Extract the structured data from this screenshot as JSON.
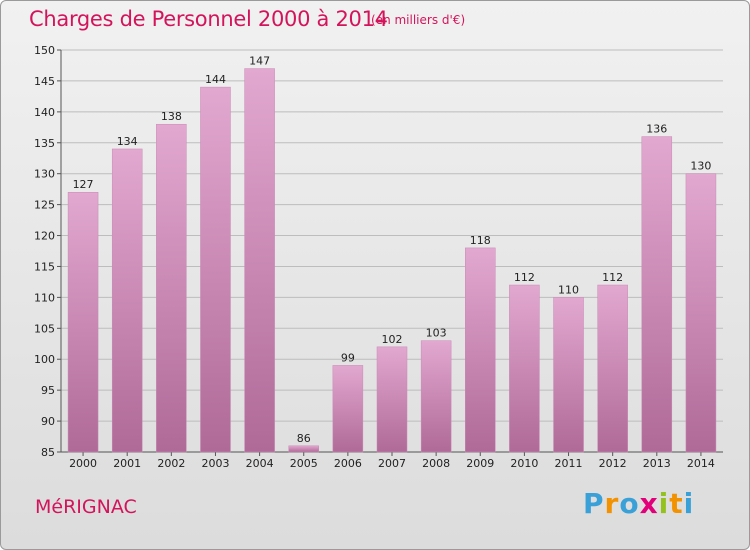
{
  "header": {
    "title": "Charges de Personnel 2000 à 2014",
    "subtitle": "(en milliers d'€)"
  },
  "footer": {
    "commune": "MéRIGNAC",
    "logo": "Proxiti",
    "logo_letters": [
      {
        "ch": "P",
        "color": "#3aa0d8"
      },
      {
        "ch": "r",
        "color": "#f39200"
      },
      {
        "ch": "o",
        "color": "#3aa0d8"
      },
      {
        "ch": "x",
        "color": "#e2007a"
      },
      {
        "ch": "i",
        "color": "#95c11f"
      },
      {
        "ch": "t",
        "color": "#f39200"
      },
      {
        "ch": "i",
        "color": "#3aa0d8"
      }
    ]
  },
  "colors": {
    "bar_top": "#e2a8d0",
    "bar_bottom": "#b06a98",
    "accent": "#d4145a"
  },
  "chart_data": {
    "type": "bar",
    "title": "Charges de Personnel 2000 à 2014",
    "subtitle": "(en milliers d'€)",
    "categories": [
      "2000",
      "2001",
      "2002",
      "2003",
      "2004",
      "2005",
      "2006",
      "2007",
      "2008",
      "2009",
      "2010",
      "2011",
      "2012",
      "2013",
      "2014"
    ],
    "values": [
      127,
      134,
      138,
      144,
      147,
      86,
      99,
      102,
      103,
      118,
      112,
      110,
      112,
      136,
      130
    ],
    "ylim": [
      85,
      150
    ],
    "yticks": [
      85,
      90,
      95,
      100,
      105,
      110,
      115,
      120,
      125,
      130,
      135,
      140,
      145,
      150
    ],
    "grid": true
  }
}
